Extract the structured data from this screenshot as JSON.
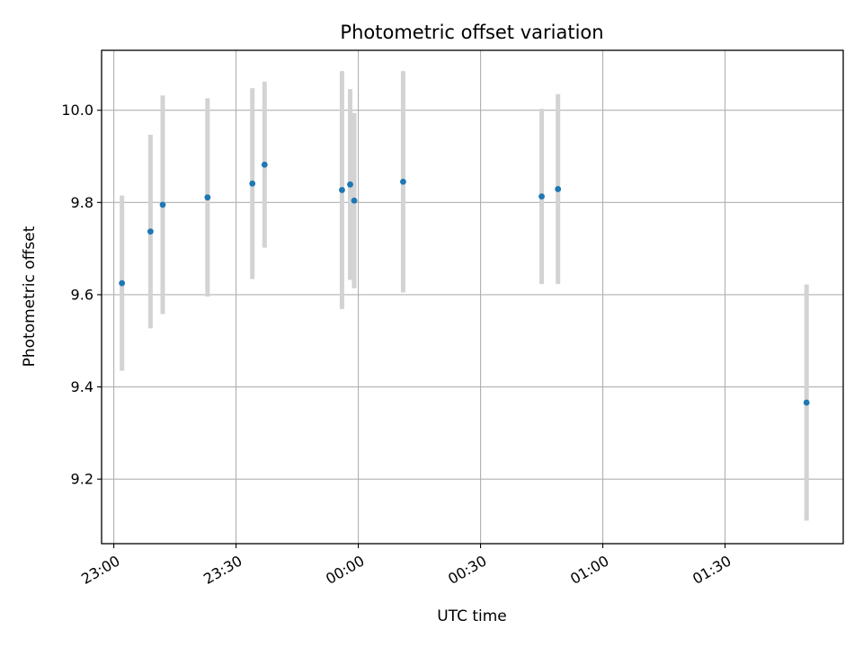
{
  "chart_data": {
    "type": "scatter",
    "title": "Photometric offset variation",
    "xlabel": "UTC time",
    "ylabel": "Photometric offset",
    "x_ticks": [
      "23:00",
      "23:30",
      "00:00",
      "00:30",
      "01:00",
      "01:30"
    ],
    "y_ticks": [
      "9.2",
      "9.4",
      "9.6",
      "9.8",
      "10.0"
    ],
    "xlim": [
      "22:57",
      "01:59"
    ],
    "ylim": [
      9.06,
      10.13
    ],
    "grid": true,
    "series": [
      {
        "marker_color": "#1f77b4",
        "errorbar_color": "#d3d3d3",
        "points": [
          {
            "time": "23:02",
            "value": 9.625,
            "error": 0.19
          },
          {
            "time": "23:09",
            "value": 9.737,
            "error": 0.21
          },
          {
            "time": "23:12",
            "value": 9.795,
            "error": 0.237
          },
          {
            "time": "23:23",
            "value": 9.811,
            "error": 0.215
          },
          {
            "time": "23:34",
            "value": 9.841,
            "error": 0.207
          },
          {
            "time": "23:37",
            "value": 9.882,
            "error": 0.18
          },
          {
            "time": "23:56",
            "value": 9.827,
            "error": 0.258
          },
          {
            "time": "23:58",
            "value": 9.839,
            "error": 0.207
          },
          {
            "time": "23:59",
            "value": 9.804,
            "error": 0.19
          },
          {
            "time": "00:11",
            "value": 9.845,
            "error": 0.24
          },
          {
            "time": "00:45",
            "value": 9.813,
            "error": 0.19
          },
          {
            "time": "00:49",
            "value": 9.829,
            "error": 0.206
          },
          {
            "time": "01:50",
            "value": 9.366,
            "error": 0.256
          }
        ]
      }
    ]
  }
}
